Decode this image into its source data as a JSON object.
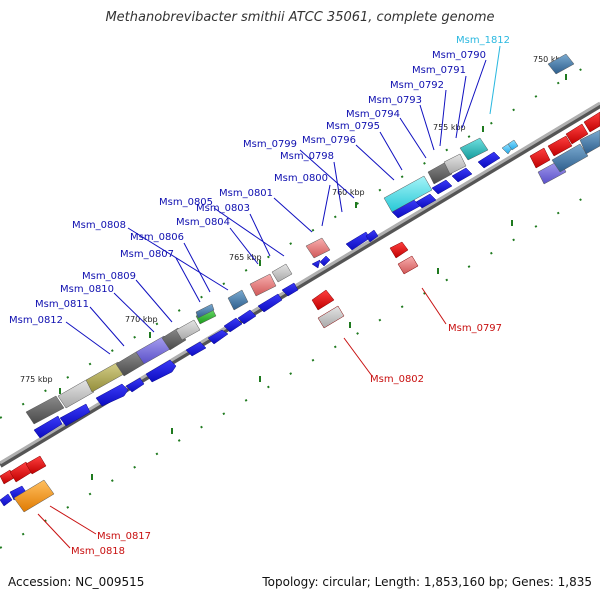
{
  "title": "Methanobrevibacter smithii ATCC 35061, complete genome",
  "footer": {
    "accession": "Accession: NC_009515",
    "stats": "Topology: circular; Length: 1,853,160 bp; Genes: 1,835"
  },
  "colors": {
    "forward_gene": "#1f1fe0",
    "reverse_gene": "#e01b1b",
    "label_forward": "#1010b0",
    "label_reverse": "#c81010",
    "label_highlight": "#2ab8e0",
    "backbone": "#808080",
    "tick": "#1f7a1f"
  },
  "ruler_ticks": [
    "750 kbp",
    "755 kbp",
    "760 kbp",
    "765 kbp",
    "770 kbp",
    "775 kbp"
  ],
  "upper_labels": [
    {
      "name": "Msm_1812",
      "color": "highlight"
    },
    {
      "name": "Msm_0790",
      "color": "forward"
    },
    {
      "name": "Msm_0791",
      "color": "forward"
    },
    {
      "name": "Msm_0792",
      "color": "forward"
    },
    {
      "name": "Msm_0793",
      "color": "forward"
    },
    {
      "name": "Msm_0794",
      "color": "forward"
    },
    {
      "name": "Msm_0795",
      "color": "forward"
    },
    {
      "name": "Msm_0796",
      "color": "forward"
    },
    {
      "name": "Msm_0799",
      "color": "forward"
    },
    {
      "name": "Msm_0798",
      "color": "forward"
    },
    {
      "name": "Msm_0800",
      "color": "forward"
    },
    {
      "name": "Msm_0801",
      "color": "forward"
    },
    {
      "name": "Msm_0805",
      "color": "forward"
    },
    {
      "name": "Msm_0803",
      "color": "forward"
    },
    {
      "name": "Msm_0804",
      "color": "forward"
    },
    {
      "name": "Msm_0808",
      "color": "forward"
    },
    {
      "name": "Msm_0806",
      "color": "forward"
    },
    {
      "name": "Msm_0807",
      "color": "forward"
    },
    {
      "name": "Msm_0809",
      "color": "forward"
    },
    {
      "name": "Msm_0810",
      "color": "forward"
    },
    {
      "name": "Msm_0811",
      "color": "forward"
    },
    {
      "name": "Msm_0812",
      "color": "forward"
    }
  ],
  "lower_labels": [
    {
      "name": "Msm_0797",
      "color": "reverse"
    },
    {
      "name": "Msm_0802",
      "color": "reverse"
    },
    {
      "name": "Msm_0817",
      "color": "reverse"
    },
    {
      "name": "Msm_0818",
      "color": "reverse"
    }
  ]
}
